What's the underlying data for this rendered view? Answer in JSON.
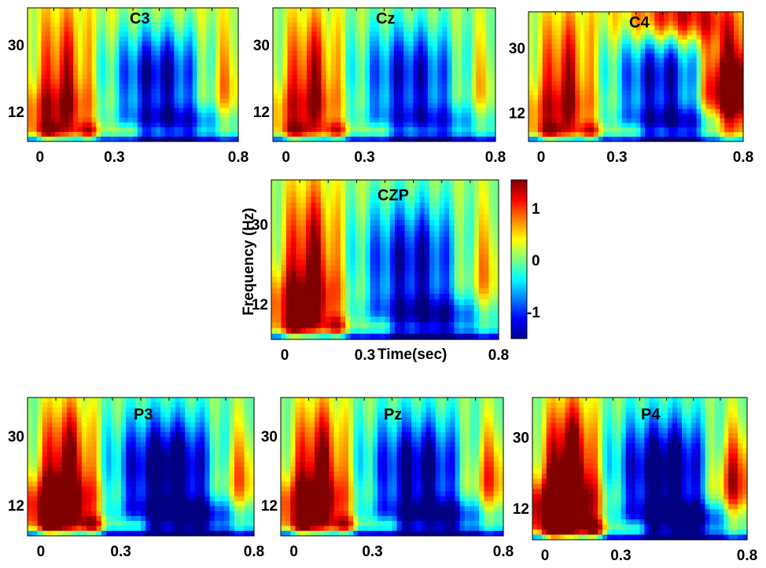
{
  "chart_data": {
    "type": "heatmap",
    "description_units": {
      "x": "Time(sec)",
      "y": "Frequency (Hz)"
    },
    "ylabel": "Frequency (Hz)",
    "xlabel": "Time(sec)",
    "xlim": [
      -0.05,
      0.8
    ],
    "ylim": [
      4,
      40
    ],
    "x_ticks": [
      "0",
      "0.3",
      "0.8"
    ],
    "y_ticks": [
      "12",
      "30"
    ],
    "colorbar": {
      "colormap": "jet",
      "range": [
        -1.5,
        1.5
      ],
      "ticks": [
        "1",
        "0",
        "-1"
      ]
    },
    "panels": [
      {
        "title": "C3",
        "features": {
          "early_alpha": 0.9,
          "theta_band": 1.0,
          "early_broad": 0.7,
          "ersp_blob": -1.6,
          "low_late": -1.2,
          "late_high": 0.6,
          "bg": 0.25
        }
      },
      {
        "title": "Cz",
        "features": {
          "early_alpha": 1.1,
          "theta_band": 1.0,
          "early_broad": 0.6,
          "ersp_blob": -1.3,
          "low_late": -1.0,
          "late_high": 0.5,
          "bg": 0.1
        }
      },
      {
        "title": "C4",
        "features": {
          "early_alpha": 1.0,
          "theta_band": 1.0,
          "early_broad": 0.6,
          "ersp_blob": -1.5,
          "low_late": -1.3,
          "late_high": 2.4,
          "bg": 0.2
        }
      },
      {
        "title": "CZP",
        "features": {
          "early_alpha": 1.3,
          "theta_band": 1.0,
          "early_broad": 0.9,
          "ersp_blob": -1.4,
          "low_late": -1.3,
          "late_high": 0.7,
          "bg": 0.1
        }
      },
      {
        "title": "P3",
        "features": {
          "early_alpha": 1.6,
          "theta_band": 1.2,
          "early_broad": 1.3,
          "ersp_blob": -1.8,
          "low_late": -1.5,
          "late_high": 1.0,
          "bg": 0.0
        }
      },
      {
        "title": "Pz",
        "features": {
          "early_alpha": 1.5,
          "theta_band": 1.1,
          "early_broad": 1.1,
          "ersp_blob": -1.5,
          "low_late": -1.4,
          "late_high": 1.1,
          "bg": 0.0
        }
      },
      {
        "title": "P4",
        "features": {
          "early_alpha": 2.0,
          "theta_band": 1.3,
          "early_broad": 1.6,
          "ersp_blob": -1.8,
          "low_late": -1.6,
          "late_high": 1.5,
          "bg": 0.0
        }
      }
    ]
  }
}
